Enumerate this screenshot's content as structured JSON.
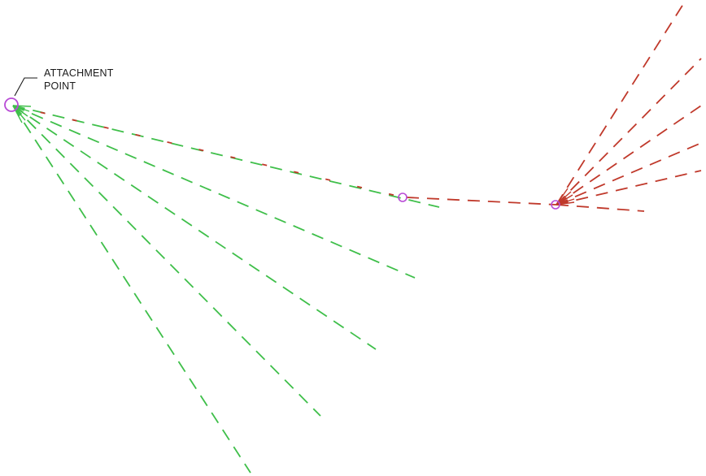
{
  "callout": {
    "line1": "ATTACHMENT",
    "line2": "POINT"
  },
  "colors": {
    "green_lines": "#3fbf4a",
    "red_lines": "#c0392b",
    "circle_markers": "#b84bd6",
    "callout_leader": "#1a1a1a",
    "background": "#ffffff"
  },
  "elements": {
    "attachment_point": "attachment-point-circle",
    "middle_node": "middle-node-circle",
    "right_node": "right-node-circle"
  }
}
